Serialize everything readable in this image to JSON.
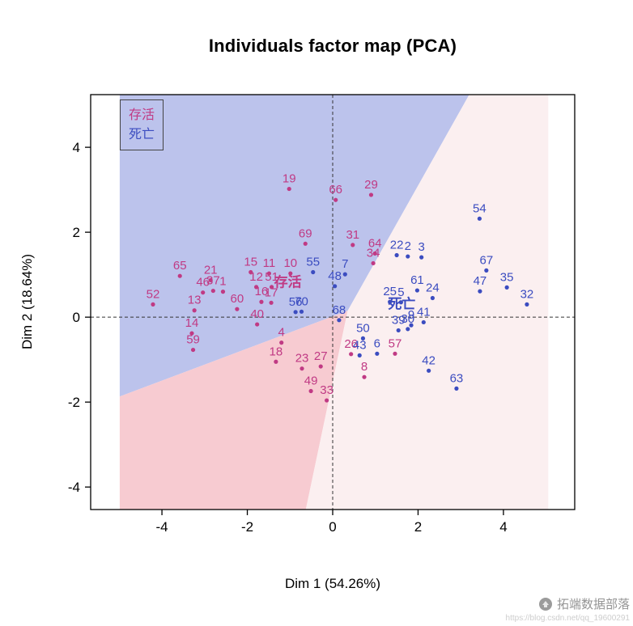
{
  "title": "Individuals factor map (PCA)",
  "legend": {
    "position": "topleft",
    "items": [
      {
        "label": "存活",
        "color": "#C03A84"
      },
      {
        "label": "死亡",
        "color": "#3B4CC0"
      }
    ]
  },
  "watermark": {
    "brand": "拓端数据部落",
    "url": "https://blog.csdn.net/qq_19600291",
    "logo_icon": "hand-logo-icon"
  },
  "chart_data": {
    "type": "scatter",
    "title": "Individuals factor map (PCA)",
    "xlabel": "Dim 1 (54.26%)",
    "ylabel": "Dim 2 (18.64%)",
    "xlim": [
      -5.67,
      5.67
    ],
    "ylim": [
      -4.53,
      5.24
    ],
    "xticks": [
      -4,
      -2,
      0,
      2,
      4
    ],
    "yticks": [
      -4,
      -2,
      0,
      2,
      4
    ],
    "grid": false,
    "crosshair": {
      "x": 0,
      "y": 0,
      "style": "dashed"
    },
    "regions": [
      {
        "name": "death-region-blue",
        "color": "#BCC3EC",
        "points": [
          [
            -4.99,
            5.24
          ],
          [
            3.2,
            5.24
          ],
          [
            0.35,
            0.15
          ],
          [
            -4.99,
            -1.87
          ]
        ]
      },
      {
        "name": "survival-region-pink",
        "color": "#F7CBD1",
        "points": [
          [
            -4.99,
            -1.87
          ],
          [
            0.35,
            0.15
          ],
          [
            -0.63,
            -4.53
          ],
          [
            -4.99,
            -4.53
          ]
        ]
      },
      {
        "name": "pale-region-right",
        "color": "#FBEFF0",
        "points": [
          [
            3.2,
            5.24
          ],
          [
            5.05,
            5.24
          ],
          [
            5.05,
            -4.53
          ],
          [
            -0.63,
            -4.53
          ],
          [
            0.35,
            0.15
          ]
        ]
      }
    ],
    "series": [
      {
        "name": "存活",
        "color": "#C03A84",
        "points": [
          {
            "label": "19",
            "x": -1.02,
            "y": 3.02
          },
          {
            "label": "66",
            "x": 0.07,
            "y": 2.76
          },
          {
            "label": "29",
            "x": 0.9,
            "y": 2.88
          },
          {
            "label": "69",
            "x": -0.64,
            "y": 1.73
          },
          {
            "label": "31",
            "x": 0.47,
            "y": 1.7
          },
          {
            "label": "64",
            "x": 0.99,
            "y": 1.5
          },
          {
            "label": "34",
            "x": 0.95,
            "y": 1.27
          },
          {
            "label": "15",
            "x": -1.92,
            "y": 1.06
          },
          {
            "label": "11",
            "x": -1.49,
            "y": 1.03
          },
          {
            "label": "10",
            "x": -0.99,
            "y": 1.03
          },
          {
            "label": "65",
            "x": -3.58,
            "y": 0.97
          },
          {
            "label": "21",
            "x": -2.86,
            "y": 0.87
          },
          {
            "label": "46",
            "x": -3.04,
            "y": 0.58
          },
          {
            "label": "37",
            "x": -2.8,
            "y": 0.62
          },
          {
            "label": "1",
            "x": -2.57,
            "y": 0.6
          },
          {
            "label": "52",
            "x": -4.21,
            "y": 0.3
          },
          {
            "label": "13",
            "x": -3.24,
            "y": 0.16
          },
          {
            "label": "12",
            "x": -1.79,
            "y": 0.71
          },
          {
            "label": "51",
            "x": -1.43,
            "y": 0.71
          },
          {
            "label": "60",
            "x": -2.24,
            "y": 0.19
          },
          {
            "label": "16",
            "x": -1.67,
            "y": 0.36
          },
          {
            "label": "17",
            "x": -1.44,
            "y": 0.34
          },
          {
            "label": "14",
            "x": -3.3,
            "y": -0.38
          },
          {
            "label": "59",
            "x": -3.27,
            "y": -0.77
          },
          {
            "label": "40",
            "x": -1.77,
            "y": -0.17
          },
          {
            "label": "4",
            "x": -1.2,
            "y": -0.6
          },
          {
            "label": "18",
            "x": -1.33,
            "y": -1.05
          },
          {
            "label": "23",
            "x": -0.72,
            "y": -1.21
          },
          {
            "label": "27",
            "x": -0.28,
            "y": -1.16
          },
          {
            "label": "49",
            "x": -0.51,
            "y": -1.74
          },
          {
            "label": "33",
            "x": -0.14,
            "y": -1.96
          },
          {
            "label": "8",
            "x": 0.74,
            "y": -1.41
          },
          {
            "label": "26",
            "x": 0.43,
            "y": -0.87
          },
          {
            "label": "57",
            "x": 1.46,
            "y": -0.86
          }
        ]
      },
      {
        "name": "死亡",
        "color": "#3B4CC0",
        "points": [
          {
            "label": "54",
            "x": 3.44,
            "y": 2.32
          },
          {
            "label": "22",
            "x": 1.5,
            "y": 1.46
          },
          {
            "label": "2",
            "x": 1.76,
            "y": 1.43
          },
          {
            "label": "3",
            "x": 2.08,
            "y": 1.41
          },
          {
            "label": "67",
            "x": 3.6,
            "y": 1.1
          },
          {
            "label": "47",
            "x": 3.45,
            "y": 0.61
          },
          {
            "label": "35",
            "x": 4.08,
            "y": 0.7
          },
          {
            "label": "32",
            "x": 4.55,
            "y": 0.3
          },
          {
            "label": "55",
            "x": -0.46,
            "y": 1.06
          },
          {
            "label": "7",
            "x": 0.29,
            "y": 1.01
          },
          {
            "label": "48",
            "x": 0.05,
            "y": 0.73
          },
          {
            "label": "56",
            "x": -0.87,
            "y": 0.12
          },
          {
            "label": "70",
            "x": -0.73,
            "y": 0.13
          },
          {
            "label": "68",
            "x": 0.15,
            "y": -0.07
          },
          {
            "label": "61",
            "x": 1.98,
            "y": 0.63
          },
          {
            "label": "24",
            "x": 2.34,
            "y": 0.45
          },
          {
            "label": "25",
            "x": 1.34,
            "y": 0.36
          },
          {
            "label": "5",
            "x": 1.6,
            "y": 0.35
          },
          {
            "label": "9",
            "x": 1.84,
            "y": -0.19
          },
          {
            "label": "41",
            "x": 2.13,
            "y": -0.12
          },
          {
            "label": "30",
            "x": 1.76,
            "y": -0.28
          },
          {
            "label": "39",
            "x": 1.54,
            "y": -0.31
          },
          {
            "label": "50",
            "x": 0.71,
            "y": -0.5
          },
          {
            "label": "43",
            "x": 0.63,
            "y": -0.9
          },
          {
            "label": "6",
            "x": 1.04,
            "y": -0.86
          },
          {
            "label": "42",
            "x": 2.25,
            "y": -1.26
          },
          {
            "label": "63",
            "x": 2.9,
            "y": -1.68
          }
        ]
      }
    ],
    "centroid_labels": [
      {
        "label": "存活",
        "x": -1.05,
        "y": 0.72,
        "color": "#C03A84"
      },
      {
        "label": "死亡",
        "x": 1.62,
        "y": 0.2,
        "color": "#3B4CC0"
      }
    ]
  }
}
